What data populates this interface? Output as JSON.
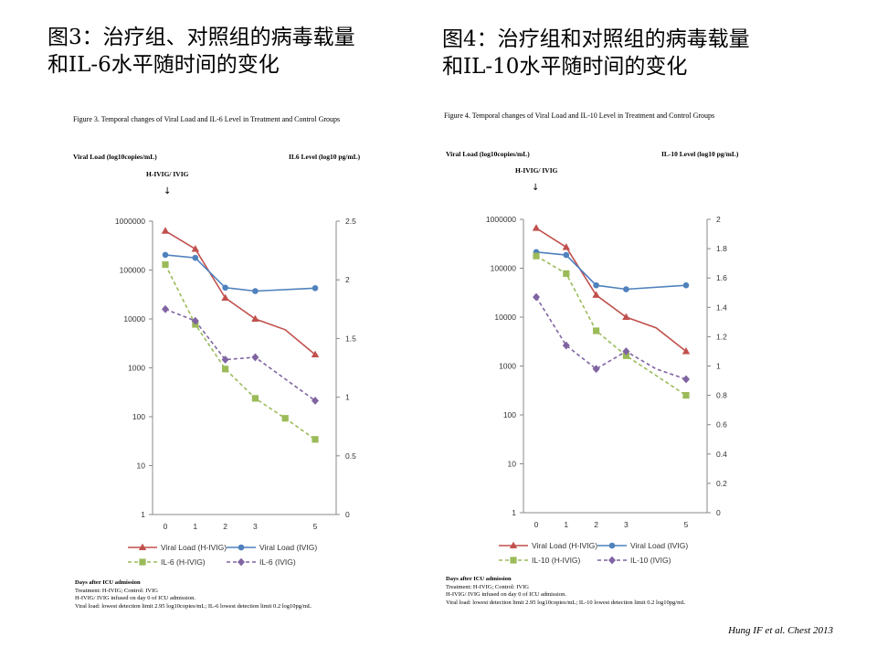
{
  "slide": {
    "title_left": [
      "图3：治疗组、对照组的病毒载量",
      "和IL-6水平随时间的变化"
    ],
    "title_right": [
      "图4：治疗组和对照组的病毒载量",
      "和IL-10水平随时间的变化"
    ],
    "citation": "Hung IF et al. Chest 2013"
  },
  "colors": {
    "viral_hivig": "#c0504d",
    "viral_ivig": "#4f81bd",
    "cyt_hivig": "#9bbb59",
    "cyt_ivig": "#8064a2"
  },
  "chart_data": [
    {
      "type": "line",
      "title": "Figure 3. Temporal changes of Viral Load and IL-6 Level in Treatment and Control Groups",
      "ylabel_left": "Viral Load (log10copies/mL)",
      "ylabel_right": "IL6 Level (log10 pg/mL)",
      "annotation": "H-IVIG/ IVIG",
      "annotation_arrow": "↓",
      "x_ticks": [
        "0",
        "1",
        "2",
        "3",
        "5"
      ],
      "x_max": 5,
      "left_scale": "log",
      "left_ticks": [
        "1",
        "10",
        "100",
        "1000",
        "10000",
        "100000",
        "1000000"
      ],
      "left_range": [
        0,
        6
      ],
      "right_ticks": [
        "0",
        "0.5",
        "1",
        "1.5",
        "2",
        "2.5"
      ],
      "right_range": [
        0,
        2.5
      ],
      "series": [
        {
          "name": "Viral Load (H-IVIG)",
          "axis": "left",
          "color": "#c0504d",
          "dash": false,
          "marker": "triangle",
          "points": [
            [
              0,
              5.8
            ],
            [
              1,
              5.43
            ],
            [
              2,
              4.43
            ],
            [
              3,
              4.0
            ],
            [
              4,
              3.78
            ],
            [
              5,
              3.27
            ]
          ],
          "markers_at": [
            0,
            1,
            2,
            3,
            5
          ]
        },
        {
          "name": "Viral Load (IVIG)",
          "axis": "left",
          "color": "#4f81bd",
          "dash": false,
          "marker": "circle",
          "points": [
            [
              0,
              5.31
            ],
            [
              1,
              5.25
            ],
            [
              2,
              4.64
            ],
            [
              3,
              4.57
            ],
            [
              5,
              4.63
            ]
          ],
          "markers_at": [
            0,
            1,
            2,
            3,
            5
          ]
        },
        {
          "name": "IL-6 (H-IVIG)",
          "axis": "right",
          "color": "#9bbb59",
          "dash": true,
          "marker": "square",
          "points": [
            [
              0,
              2.13
            ],
            [
              1,
              1.62
            ],
            [
              2,
              1.24
            ],
            [
              3,
              0.99
            ],
            [
              4,
              0.82
            ],
            [
              5,
              0.64
            ]
          ],
          "markers_at": [
            0,
            1,
            2,
            3,
            4,
            5
          ]
        },
        {
          "name": "IL-6 (IVIG)",
          "axis": "right",
          "color": "#8064a2",
          "dash": true,
          "marker": "diamond",
          "points": [
            [
              0,
              1.75
            ],
            [
              1,
              1.65
            ],
            [
              2,
              1.32
            ],
            [
              3,
              1.34
            ],
            [
              5,
              0.97
            ]
          ],
          "markers_at": [
            0,
            1,
            2,
            3,
            5
          ]
        }
      ],
      "notes": [
        "Days after ICU admission",
        "Treatment: H-IVIG; Control: IVIG",
        "H-IVIG/ IVIG infused on day 0 of ICU admission.",
        "Viral load: lowest detection limit 2.95 log10copies/mL; IL-6 lowest detection limit 0.2 log10pg/mL"
      ]
    },
    {
      "type": "line",
      "title": "Figure 4. Temporal changes of Viral Load and IL-10 Level in Treatment and Control Groups",
      "ylabel_left": "Viral Load (log10copies/mL)",
      "ylabel_right": "IL-10 Level (log10 pg/mL)",
      "annotation": "H-IVIG/ IVIG",
      "annotation_arrow": "↓",
      "x_ticks": [
        "0",
        "1",
        "2",
        "3",
        "5"
      ],
      "x_max": 5,
      "left_scale": "log",
      "left_ticks": [
        "1",
        "10",
        "100",
        "1000",
        "10000",
        "100000",
        "1000000"
      ],
      "left_range": [
        0,
        6
      ],
      "right_ticks": [
        "0",
        "0.2",
        "0.4",
        "0.6",
        "0.8",
        "1",
        "1.2",
        "1.4",
        "1.6",
        "1.8",
        "2"
      ],
      "right_range": [
        0,
        2
      ],
      "series": [
        {
          "name": "Viral Load (H-IVIG)",
          "axis": "left",
          "color": "#c0504d",
          "dash": false,
          "marker": "triangle",
          "points": [
            [
              0,
              5.82
            ],
            [
              1,
              5.43
            ],
            [
              2,
              4.45
            ],
            [
              3,
              4.0
            ],
            [
              4,
              3.78
            ],
            [
              5,
              3.3
            ]
          ],
          "markers_at": [
            0,
            1,
            2,
            3,
            5
          ]
        },
        {
          "name": "Viral Load (IVIG)",
          "axis": "left",
          "color": "#4f81bd",
          "dash": false,
          "marker": "circle",
          "points": [
            [
              0,
              5.33
            ],
            [
              1,
              5.27
            ],
            [
              2,
              4.65
            ],
            [
              3,
              4.57
            ],
            [
              5,
              4.65
            ]
          ],
          "markers_at": [
            0,
            1,
            2,
            3,
            5
          ]
        },
        {
          "name": "IL-10 (H-IVIG)",
          "axis": "right",
          "color": "#9bbb59",
          "dash": true,
          "marker": "square",
          "points": [
            [
              0,
              1.75
            ],
            [
              1,
              1.63
            ],
            [
              2,
              1.24
            ],
            [
              3,
              1.07
            ],
            [
              5,
              0.8
            ]
          ],
          "markers_at": [
            0,
            1,
            2,
            3,
            5
          ]
        },
        {
          "name": "IL-10 (IVIG)",
          "axis": "right",
          "color": "#8064a2",
          "dash": true,
          "marker": "diamond",
          "points": [
            [
              0,
              1.47
            ],
            [
              1,
              1.14
            ],
            [
              2,
              0.98
            ],
            [
              3,
              1.1
            ],
            [
              4,
              0.98
            ],
            [
              5,
              0.91
            ]
          ],
          "markers_at": [
            0,
            1,
            2,
            3,
            5
          ]
        }
      ],
      "notes": [
        "Days after ICU admission",
        "Treatment: H-IVIG; Control: IVIG",
        "H-IVIG/ IVIG infused on day 0 of ICU admission.",
        "Viral load: lowest detection limit 2.95 log10copies/mL; IL-10 lowest detection limit 0.2 log10pg/mL"
      ]
    }
  ]
}
